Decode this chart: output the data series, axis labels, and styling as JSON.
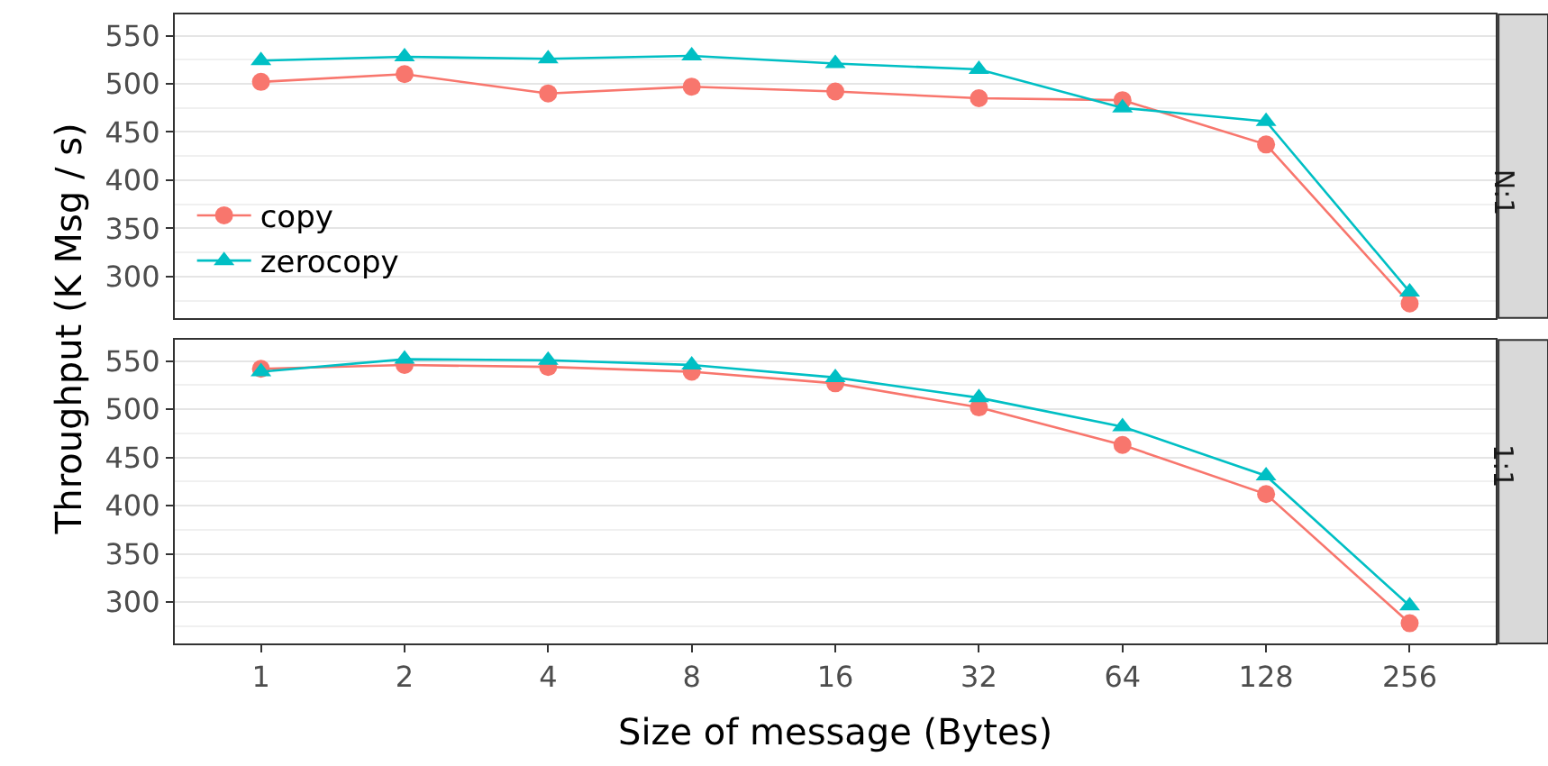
{
  "chart_data": [
    {
      "type": "line",
      "title": "N:1",
      "ylabel": "Throughput (K Msg / s)",
      "categories": [
        "1",
        "2",
        "4",
        "8",
        "16",
        "32",
        "64",
        "128",
        "256"
      ],
      "ylim": [
        257,
        572
      ],
      "yticks": [
        300,
        350,
        400,
        450,
        500,
        550
      ],
      "grid": "y",
      "legend": "bottom left",
      "tick_labels": "y",
      "line_style": "solid",
      "series": [
        {
          "name": "copy",
          "color": "#f8766d",
          "marker": "circle",
          "values": [
            502,
            510,
            490,
            497,
            492,
            485,
            483,
            437,
            272
          ]
        },
        {
          "name": "zerocopy",
          "color": "#00bfc4",
          "marker": "triangle",
          "values": [
            524,
            528,
            526,
            529,
            521,
            515,
            475,
            461,
            284
          ]
        }
      ]
    },
    {
      "type": "line",
      "title": "1:1",
      "xlabel": "Size of message (Bytes)",
      "categories": [
        "1",
        "2",
        "4",
        "8",
        "16",
        "32",
        "64",
        "128",
        "256"
      ],
      "ylim": [
        257,
        572
      ],
      "yticks": [
        300,
        350,
        400,
        450,
        500,
        550
      ],
      "grid": "y",
      "legend": false,
      "line_style": "solid",
      "series": [
        {
          "color": "#f8766d",
          "marker": "circle",
          "values": [
            542,
            546,
            544,
            539,
            527,
            502,
            463,
            412,
            278
          ]
        },
        {
          "color": "#00bfc4",
          "marker": "triangle",
          "values": [
            539,
            552,
            551,
            546,
            533,
            512,
            482,
            431,
            296
          ]
        }
      ]
    }
  ]
}
